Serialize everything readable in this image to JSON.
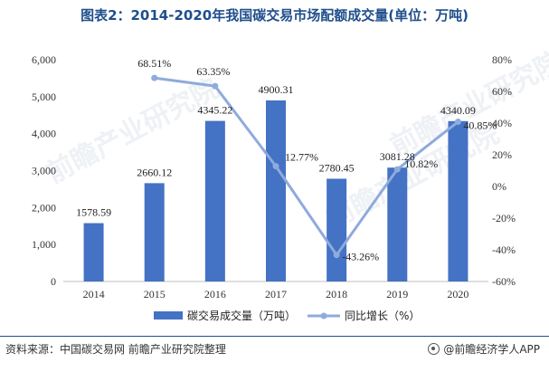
{
  "title": "图表2：2014-2020年我国碳交易市场配额成交量(单位：万吨)",
  "colors": {
    "bar": "#4472c4",
    "line": "#8faadc",
    "title": "#1f4e8c"
  },
  "chart_data": {
    "type": "bar+line",
    "categories": [
      "2014",
      "2015",
      "2016",
      "2017",
      "2018",
      "2019",
      "2020"
    ],
    "series": [
      {
        "name": "碳交易成交量（万吨）",
        "type": "bar",
        "axis": "left",
        "values": [
          1578.59,
          2660.12,
          4345.22,
          4900.31,
          2780.45,
          3081.28,
          4340.09
        ],
        "labels": [
          "1578.59",
          "2660.12",
          "4345.22",
          "4900.31",
          "2780.45",
          "3081.28",
          "4340.09"
        ]
      },
      {
        "name": "同比增长（%）",
        "type": "line",
        "axis": "right",
        "values": [
          null,
          68.51,
          63.35,
          12.77,
          -43.26,
          10.82,
          40.85
        ],
        "labels": [
          "",
          "68.51%",
          "63.35%",
          "12.77%",
          "-43.26%",
          "10.82%",
          "40.85%"
        ]
      }
    ],
    "y_left": {
      "ylim": [
        0,
        6000
      ],
      "ticks": [
        "0",
        "1,000",
        "2,000",
        "3,000",
        "4,000",
        "5,000",
        "6,000"
      ]
    },
    "y_right": {
      "ylim": [
        -60,
        80
      ],
      "ticks": [
        "-60%",
        "-40%",
        "-20%",
        "0%",
        "20%",
        "40%",
        "60%",
        "80%"
      ]
    },
    "grid": false,
    "legend_position": "bottom"
  },
  "watermark": "前瞻产业研究院",
  "footer": {
    "source": "资料来源：中国碳交易网 前瞻产业研究院整理",
    "brand": "@前瞻经济学人APP"
  }
}
